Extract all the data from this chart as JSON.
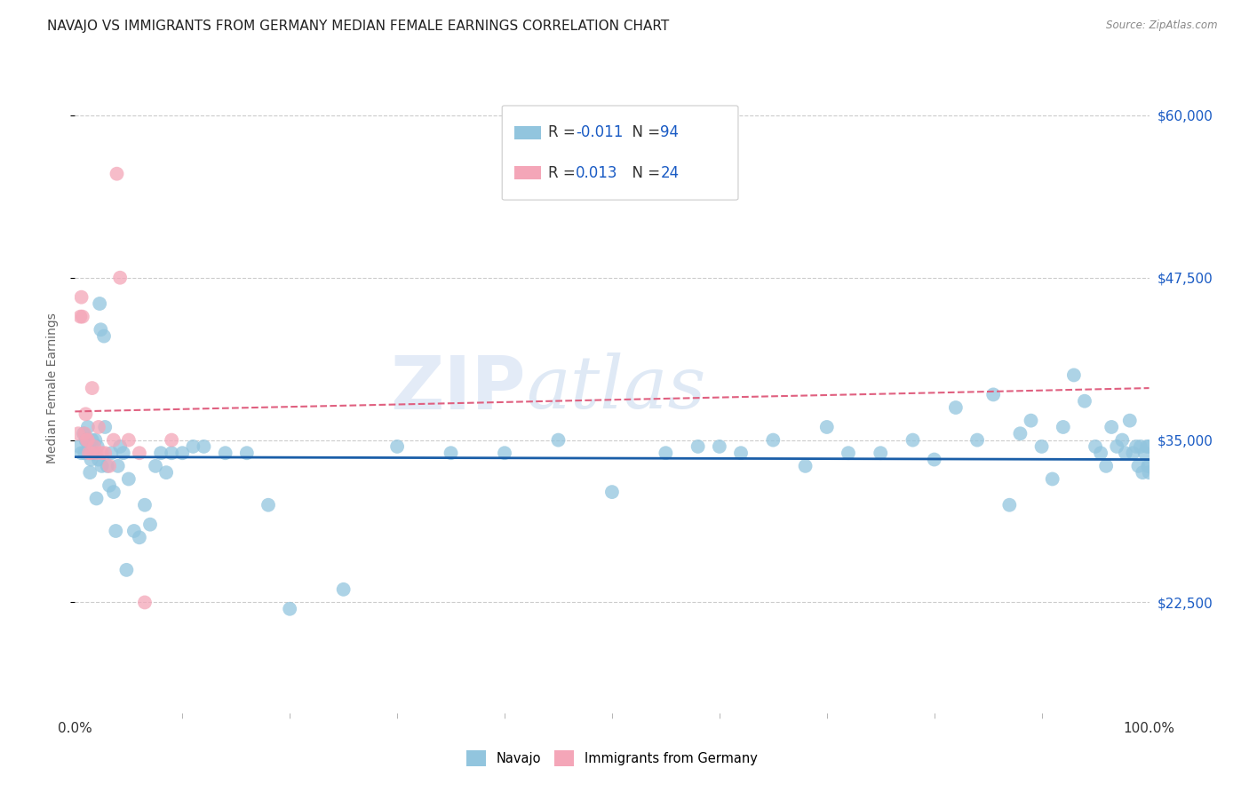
{
  "title": "NAVAJO VS IMMIGRANTS FROM GERMANY MEDIAN FEMALE EARNINGS CORRELATION CHART",
  "source": "Source: ZipAtlas.com",
  "ylabel": "Median Female Earnings",
  "xlim": [
    0.0,
    1.0
  ],
  "ylim": [
    14000,
    64000
  ],
  "yticks": [
    22500,
    35000,
    47500,
    60000
  ],
  "ytick_labels": [
    "$22,500",
    "$35,000",
    "$47,500",
    "$60,000"
  ],
  "xtick_labels": [
    "0.0%",
    "100.0%"
  ],
  "legend_navajo_R": "-0.011",
  "legend_navajo_N": "94",
  "legend_germany_R": "0.013",
  "legend_germany_N": "24",
  "navajo_color": "#92c5de",
  "germany_color": "#f4a6b8",
  "navajo_trend_color": "#1a5ea8",
  "germany_trend_color": "#e06080",
  "background_color": "#ffffff",
  "grid_color": "#cccccc",
  "navajo_x": [
    0.004,
    0.006,
    0.008,
    0.009,
    0.01,
    0.011,
    0.012,
    0.013,
    0.014,
    0.015,
    0.016,
    0.017,
    0.018,
    0.019,
    0.02,
    0.021,
    0.022,
    0.023,
    0.024,
    0.025,
    0.027,
    0.028,
    0.03,
    0.032,
    0.034,
    0.036,
    0.038,
    0.04,
    0.042,
    0.045,
    0.048,
    0.05,
    0.055,
    0.06,
    0.065,
    0.07,
    0.075,
    0.08,
    0.085,
    0.09,
    0.1,
    0.11,
    0.12,
    0.14,
    0.16,
    0.18,
    0.2,
    0.25,
    0.3,
    0.35,
    0.4,
    0.45,
    0.5,
    0.55,
    0.58,
    0.6,
    0.62,
    0.65,
    0.68,
    0.7,
    0.72,
    0.75,
    0.78,
    0.8,
    0.82,
    0.84,
    0.855,
    0.87,
    0.88,
    0.89,
    0.9,
    0.91,
    0.92,
    0.93,
    0.94,
    0.95,
    0.955,
    0.96,
    0.965,
    0.97,
    0.975,
    0.978,
    0.982,
    0.985,
    0.988,
    0.99,
    0.992,
    0.994,
    0.996,
    0.998,
    0.999,
    1.0,
    1.0,
    1.0
  ],
  "navajo_y": [
    34500,
    34000,
    35500,
    34000,
    35000,
    35000,
    36000,
    34500,
    32500,
    33500,
    35000,
    34000,
    34000,
    35000,
    30500,
    34500,
    33500,
    45500,
    43500,
    33000,
    43000,
    36000,
    33000,
    31500,
    34000,
    31000,
    28000,
    33000,
    34500,
    34000,
    25000,
    32000,
    28000,
    27500,
    30000,
    28500,
    33000,
    34000,
    32500,
    34000,
    34000,
    34500,
    34500,
    34000,
    34000,
    30000,
    22000,
    23500,
    34500,
    34000,
    34000,
    35000,
    31000,
    34000,
    34500,
    34500,
    34000,
    35000,
    33000,
    36000,
    34000,
    34000,
    35000,
    33500,
    37500,
    35000,
    38500,
    30000,
    35500,
    36500,
    34500,
    32000,
    36000,
    40000,
    38000,
    34500,
    34000,
    33000,
    36000,
    34500,
    35000,
    34000,
    36500,
    34000,
    34500,
    33000,
    34500,
    32500,
    34000,
    34500,
    33000,
    33000,
    34500,
    32500
  ],
  "germany_x": [
    0.003,
    0.005,
    0.006,
    0.007,
    0.009,
    0.01,
    0.011,
    0.012,
    0.013,
    0.015,
    0.016,
    0.018,
    0.02,
    0.022,
    0.025,
    0.028,
    0.032,
    0.036,
    0.039,
    0.042,
    0.05,
    0.06,
    0.065,
    0.09
  ],
  "germany_y": [
    35500,
    44500,
    46000,
    44500,
    35500,
    37000,
    35000,
    35000,
    34000,
    34000,
    39000,
    34500,
    34000,
    36000,
    34000,
    34000,
    33000,
    35000,
    55500,
    47500,
    35000,
    34000,
    22500,
    35000
  ],
  "navajo_trendline": [
    33700,
    33500
  ],
  "germany_trendline": [
    37200,
    39000
  ],
  "watermark_part1": "ZIP",
  "watermark_part2": "atlas",
  "title_fontsize": 11,
  "axis_label_fontsize": 10,
  "tick_label_color_y": "#1a5bc4",
  "legend_fontsize": 12
}
